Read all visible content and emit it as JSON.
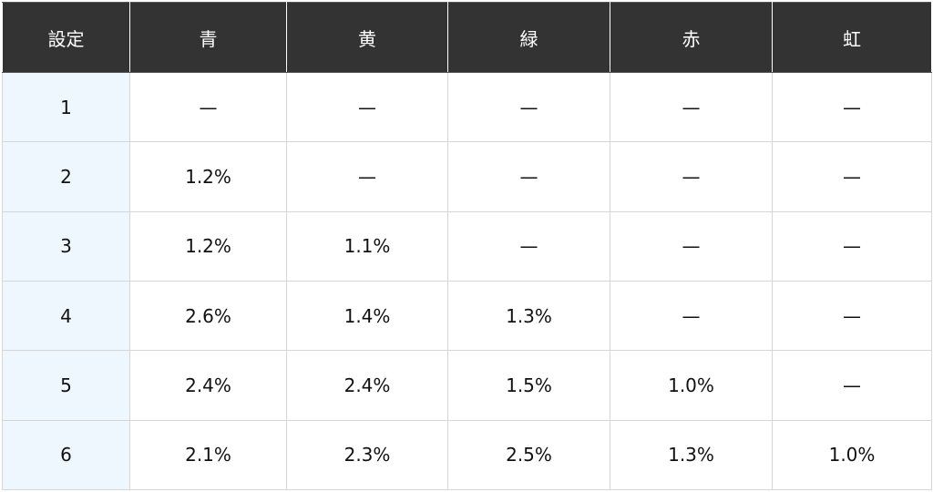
{
  "table": {
    "headers": [
      "設定",
      "青",
      "黄",
      "緑",
      "赤",
      "虹"
    ],
    "rows": [
      [
        "1",
        "—",
        "—",
        "—",
        "—",
        "—"
      ],
      [
        "2",
        "1.2%",
        "—",
        "—",
        "—",
        "—"
      ],
      [
        "3",
        "1.2%",
        "1.1%",
        "—",
        "—",
        "—"
      ],
      [
        "4",
        "2.6%",
        "1.4%",
        "1.3%",
        "—",
        "—"
      ],
      [
        "5",
        "2.4%",
        "2.4%",
        "1.5%",
        "1.0%",
        "—"
      ],
      [
        "6",
        "2.1%",
        "2.3%",
        "2.5%",
        "1.3%",
        "1.0%"
      ]
    ]
  }
}
